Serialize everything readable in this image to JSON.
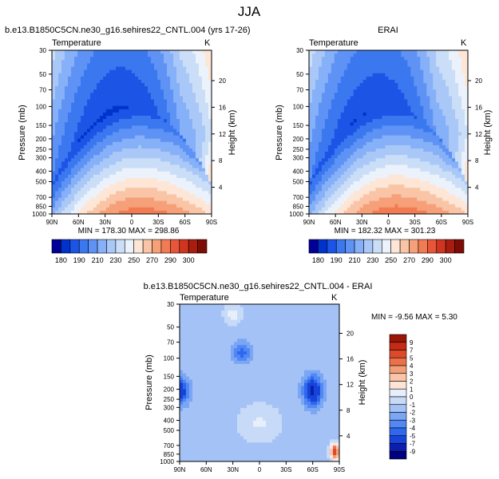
{
  "page": {
    "title": "JJA"
  },
  "colors": {
    "temperature_scale": [
      "#000099",
      "#0033cc",
      "#1c55e6",
      "#3b78f0",
      "#5e93f5",
      "#86b0f7",
      "#aac8f7",
      "#cadef8",
      "#ecf2fb",
      "#fde6d6",
      "#f9c5a6",
      "#f6a07a",
      "#f17b53",
      "#e8563a",
      "#d03520",
      "#a81d0e",
      "#7d0c05"
    ],
    "difference_scale": [
      "#00007f",
      "#0a1fb0",
      "#1744d8",
      "#2f68ee",
      "#5288f3",
      "#7aa6f4",
      "#a4c2f5",
      "#c7daf7",
      "#e6effa",
      "#fde4d5",
      "#f9c4a8",
      "#f39d79",
      "#ec7149",
      "#dd4a2a",
      "#c42a14",
      "#9a1407"
    ]
  },
  "chart_data": [
    {
      "type": "heatmap",
      "id": "model",
      "title": "b.e13.B1850C5CN.ne30_g16.sehires22_CNTL.004 (yrs 17-26)",
      "left_label": "Temperature",
      "right_label": "K",
      "xlabel": "",
      "ylabel": "Pressure (mb)",
      "y2label": "Height (km)",
      "x_ticks": [
        "90N",
        "60N",
        "30N",
        "0",
        "30S",
        "60S",
        "90S"
      ],
      "p_ticks": [
        30,
        50,
        70,
        100,
        150,
        200,
        250,
        300,
        400,
        500,
        700,
        850,
        1000
      ],
      "h_ticks": [
        4,
        8,
        12,
        16,
        20
      ],
      "min": 178.3,
      "max": 298.86,
      "stats": "MIN = 178.30   MAX = 298.86",
      "levels": [
        180,
        190,
        200,
        210,
        220,
        230,
        240,
        250,
        260,
        270,
        280,
        290,
        300
      ]
    },
    {
      "type": "heatmap",
      "id": "obs",
      "title": "ERAI",
      "left_label": "Temperature",
      "right_label": "K",
      "xlabel": "",
      "ylabel": "Pressure (mb)",
      "y2label": "Height (km)",
      "x_ticks": [
        "90N",
        "60N",
        "30N",
        "0",
        "30S",
        "60S",
        "90S"
      ],
      "p_ticks": [
        30,
        50,
        70,
        100,
        150,
        200,
        250,
        300,
        400,
        500,
        700,
        850,
        1000
      ],
      "h_ticks": [
        4,
        8,
        12,
        16,
        20
      ],
      "min": 182.32,
      "max": 301.23,
      "stats": "MIN = 182.32   MAX = 301.23",
      "levels": [
        180,
        190,
        200,
        210,
        220,
        230,
        240,
        250,
        260,
        270,
        280,
        290,
        300
      ]
    },
    {
      "type": "heatmap",
      "id": "diff",
      "title": "b.e13.B1850C5CN.ne30_g16.sehires22_CNTL.004 - ERAI",
      "left_label": "Temperature",
      "right_label": "K",
      "xlabel": "",
      "ylabel": "Pressure (mb)",
      "y2label": "Height (km)",
      "x_ticks": [
        "90N",
        "60N",
        "30N",
        "0",
        "30S",
        "60S",
        "90S"
      ],
      "p_ticks": [
        30,
        50,
        70,
        100,
        150,
        200,
        250,
        300,
        400,
        500,
        700,
        850,
        1000
      ],
      "h_ticks": [
        4,
        8,
        12,
        16,
        20
      ],
      "min": -9.56,
      "max": 5.3,
      "stats": "MIN =  -9.56   MAX =   5.30",
      "levels": [
        -9,
        -7,
        -5,
        -4,
        -3,
        -2,
        -1,
        0,
        1,
        2,
        3,
        4,
        5,
        7,
        9
      ]
    }
  ],
  "colorbars": {
    "temperature_labels": [
      "180",
      "190",
      "210",
      "230",
      "250",
      "270",
      "290",
      "300"
    ],
    "difference_labels": [
      "9",
      "7",
      "5",
      "4",
      "3",
      "2",
      "1",
      "0",
      "-1",
      "-2",
      "-3",
      "-4",
      "-5",
      "-7",
      "-9"
    ]
  }
}
